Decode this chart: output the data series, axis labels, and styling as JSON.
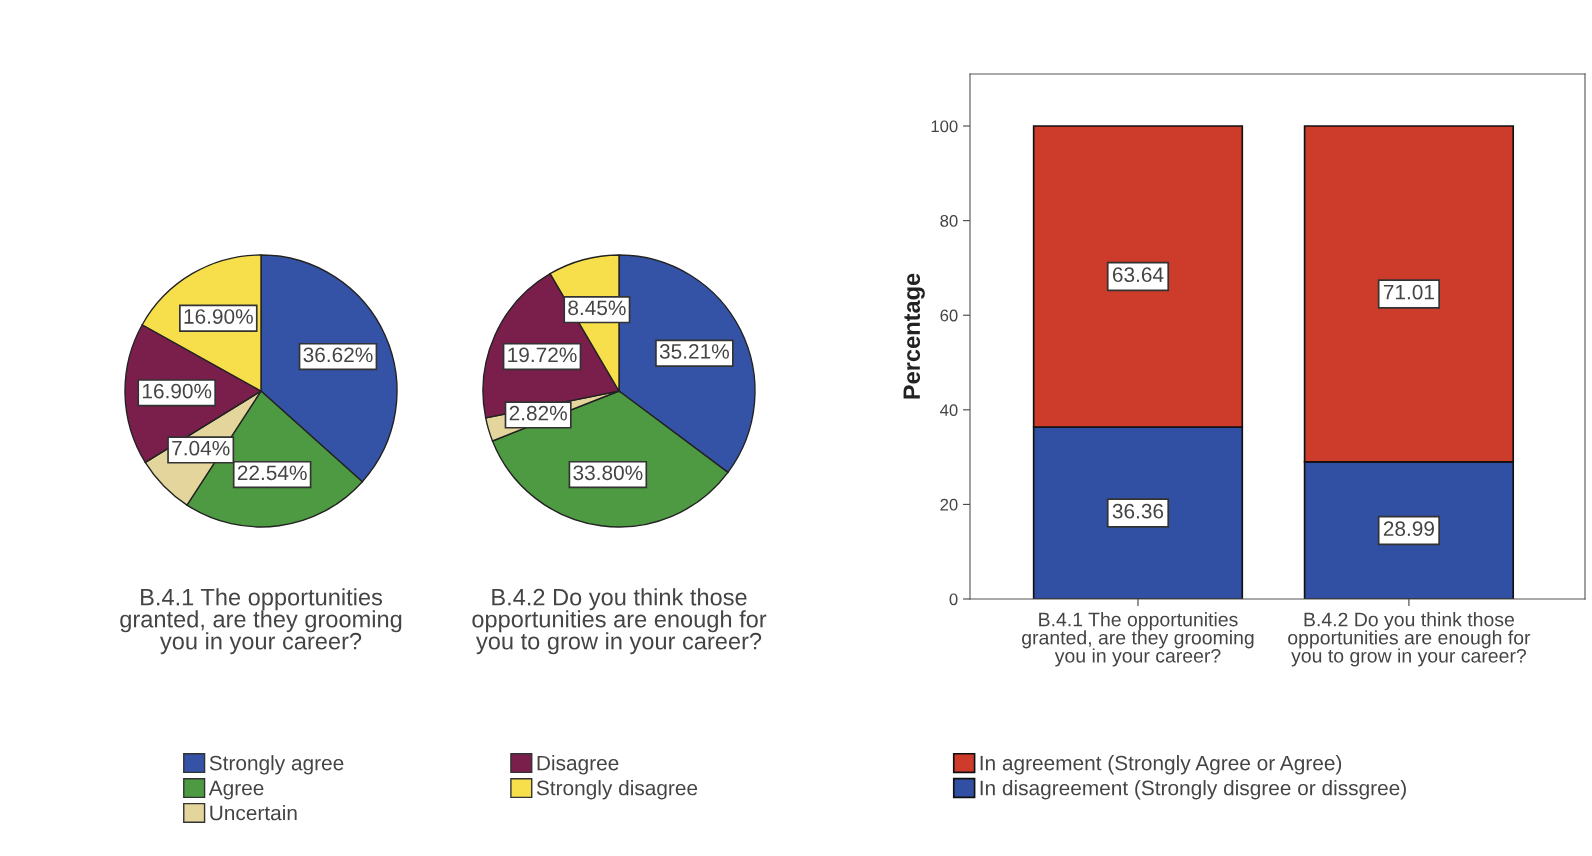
{
  "chart_data": [
    {
      "type": "pie",
      "title": "B.4.1 The opportunities granted, are they grooming you in your career?",
      "categories": [
        "Strongly agree",
        "Agree",
        "Uncertain",
        "Disagree",
        "Strongly disagree"
      ],
      "values": [
        36.62,
        22.54,
        7.04,
        16.9,
        16.9
      ],
      "value_labels": [
        "36.62%",
        "22.54%",
        "7.04%",
        "16.90%",
        "16.90%"
      ],
      "colors": [
        "#3553a6",
        "#4e9a43",
        "#e3d59c",
        "#7a1f4b",
        "#f7df4c"
      ],
      "legend": "bottom"
    },
    {
      "type": "pie",
      "title": "B.4.2 Do you think those opportunities are enough for you to grow in your career?",
      "categories": [
        null,
        null,
        null,
        null,
        null
      ],
      "values": [
        35.21,
        33.8,
        2.82,
        19.72,
        8.45
      ],
      "value_labels": [
        "35.21%",
        "33.80%",
        "2.82%",
        "19.72%",
        "8.45%"
      ],
      "colors": [
        "#3553a6",
        "#4e9a43",
        "#e3d59c",
        "#7a1f4b",
        "#f7df4c"
      ]
    },
    {
      "type": "bar",
      "stacked": true,
      "ylabel": "Percentage",
      "categories": [
        "B.4.1 The opportunities granted, are they grooming you in your career?",
        "B.4.2 Do you think those opportunities are enough for you to grow in your career?"
      ],
      "series": [
        {
          "name": "In disagreement (Strongly disgree or dissgree)",
          "color": "#3150a3",
          "values": [
            36.36,
            28.99
          ]
        },
        {
          "name": "In agreement (Strongly Agree or Agree)",
          "color": "#cd3b2b",
          "values": [
            63.64,
            71.01
          ]
        }
      ],
      "ylim": [
        0,
        111
      ],
      "yticks": [
        0,
        20,
        40,
        60,
        80,
        100
      ],
      "data_labels": true,
      "grid": false,
      "legend": "bottom"
    }
  ]
}
